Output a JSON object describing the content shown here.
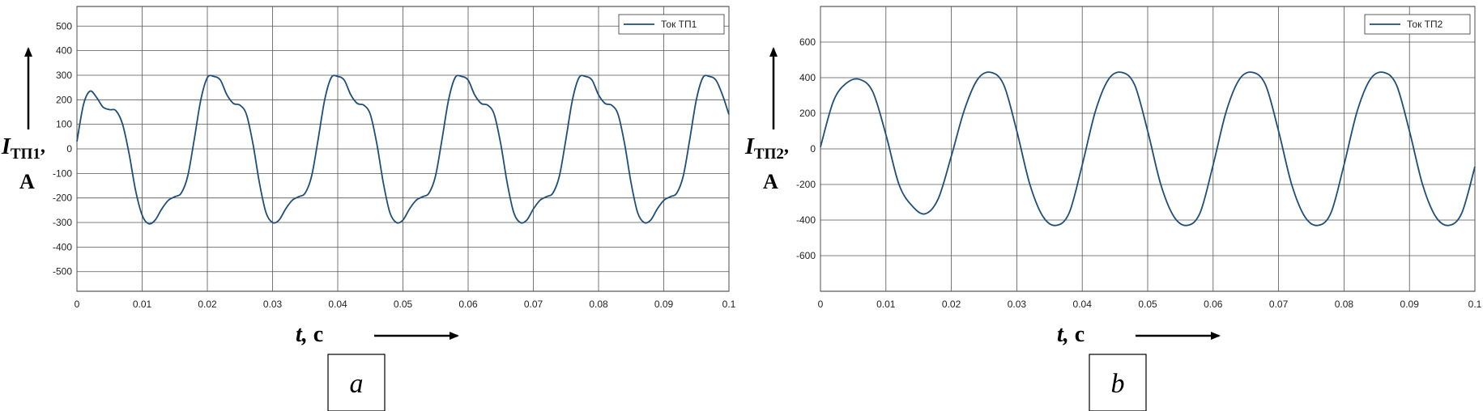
{
  "chart_data": [
    {
      "type": "line",
      "panel_label": "a",
      "legend": "Ток ТП1",
      "legend_position": "top-right",
      "grid": true,
      "ylabel": {
        "main": "I",
        "sub": "ТП1",
        "suffix": ",",
        "unit": "A"
      },
      "xlabel": {
        "main": "t",
        "unit": "с"
      },
      "xlim": [
        0,
        0.1
      ],
      "ylim": [
        -580,
        580
      ],
      "x_ticks": [
        "0",
        "0.01",
        "0.02",
        "0.03",
        "0.04",
        "0.05",
        "0.06",
        "0.07",
        "0.08",
        "0.09",
        "0.1"
      ],
      "y_ticks": [
        "500",
        "400",
        "300",
        "200",
        "100",
        "0",
        "-100",
        "-200",
        "-300",
        "-400",
        "-500"
      ],
      "series": [
        {
          "name": "Ток ТП1",
          "color": "#1f4e79",
          "x": [
            0,
            0.001,
            0.002,
            0.003,
            0.004,
            0.005,
            0.006,
            0.007,
            0.008,
            0.009,
            0.01,
            0.011,
            0.012,
            0.013,
            0.014,
            0.015,
            0.016,
            0.017,
            0.018,
            0.019,
            0.02,
            0.021,
            0.022,
            0.023,
            0.024,
            0.025,
            0.026,
            0.027,
            0.028,
            0.029,
            0.03,
            0.031,
            0.032,
            0.033,
            0.034,
            0.035,
            0.036,
            0.037,
            0.038,
            0.039,
            0.04,
            0.041,
            0.042,
            0.043,
            0.044,
            0.045,
            0.046,
            0.047,
            0.048,
            0.049,
            0.05,
            0.051,
            0.052,
            0.053,
            0.054,
            0.055,
            0.056,
            0.057,
            0.058,
            0.059,
            0.06,
            0.061,
            0.062,
            0.063,
            0.064,
            0.065,
            0.066,
            0.067,
            0.068,
            0.069,
            0.07,
            0.071,
            0.072,
            0.073,
            0.074,
            0.075,
            0.076,
            0.077,
            0.078,
            0.079,
            0.08,
            0.081,
            0.082,
            0.083,
            0.084,
            0.085,
            0.086,
            0.087,
            0.088,
            0.089,
            0.09,
            0.091,
            0.092,
            0.093,
            0.094,
            0.095,
            0.096,
            0.097,
            0.098,
            0.099,
            0.1
          ],
          "y": [
            30,
            180,
            235,
            210,
            170,
            160,
            155,
            100,
            -20,
            -170,
            -270,
            -305,
            -290,
            -245,
            -210,
            -195,
            -180,
            -110,
            40,
            200,
            290,
            295,
            280,
            220,
            185,
            178,
            140,
            20,
            -140,
            -260,
            -300,
            -290,
            -245,
            -210,
            -195,
            -180,
            -110,
            40,
            200,
            290,
            295,
            280,
            220,
            185,
            178,
            140,
            20,
            -140,
            -260,
            -300,
            -290,
            -245,
            -210,
            -195,
            -180,
            -110,
            40,
            200,
            290,
            295,
            280,
            220,
            185,
            178,
            140,
            20,
            -140,
            -260,
            -300,
            -290,
            -245,
            -210,
            -195,
            -180,
            -110,
            40,
            200,
            290,
            295,
            280,
            220,
            185,
            178,
            140,
            20,
            -140,
            -260,
            -300,
            -290,
            -245,
            -210,
            -195,
            -180,
            -110,
            40,
            200,
            290,
            295,
            280,
            220,
            140
          ]
        }
      ]
    },
    {
      "type": "line",
      "panel_label": "b",
      "legend": "Ток ТП2",
      "legend_position": "top-right",
      "grid": true,
      "ylabel": {
        "main": "I",
        "sub": "ТП2",
        "suffix": ",",
        "unit": "A"
      },
      "xlabel": {
        "main": "t",
        "unit": "с"
      },
      "xlim": [
        0,
        0.1
      ],
      "ylim": [
        -800,
        800
      ],
      "x_ticks": [
        "0",
        "0.01",
        "0.02",
        "0.03",
        "0.04",
        "0.05",
        "0.06",
        "0.07",
        "0.08",
        "0.09",
        "0.1"
      ],
      "y_ticks": [
        "600",
        "400",
        "200",
        "0",
        "-200",
        "-400",
        "-600"
      ],
      "series": [
        {
          "name": "Ток ТП2",
          "color": "#1f4e79",
          "x": [
            0,
            0.002,
            0.004,
            0.006,
            0.008,
            0.01,
            0.012,
            0.014,
            0.016,
            0.018,
            0.02,
            0.022,
            0.024,
            0.026,
            0.028,
            0.03,
            0.032,
            0.034,
            0.036,
            0.038,
            0.04,
            0.042,
            0.044,
            0.046,
            0.048,
            0.05,
            0.052,
            0.054,
            0.056,
            0.058,
            0.06,
            0.062,
            0.064,
            0.066,
            0.068,
            0.07,
            0.072,
            0.074,
            0.076,
            0.078,
            0.08,
            0.082,
            0.084,
            0.086,
            0.088,
            0.09,
            0.092,
            0.094,
            0.096,
            0.098,
            0.1
          ],
          "y": [
            10,
            270,
            370,
            390,
            320,
            80,
            -200,
            -320,
            -365,
            -280,
            -40,
            220,
            390,
            430,
            360,
            100,
            -200,
            -380,
            -430,
            -360,
            -90,
            210,
            390,
            430,
            360,
            100,
            -200,
            -380,
            -430,
            -360,
            -90,
            210,
            390,
            430,
            360,
            100,
            -200,
            -380,
            -430,
            -360,
            -90,
            210,
            390,
            430,
            360,
            100,
            -200,
            -380,
            -430,
            -360,
            -100
          ]
        }
      ]
    }
  ]
}
